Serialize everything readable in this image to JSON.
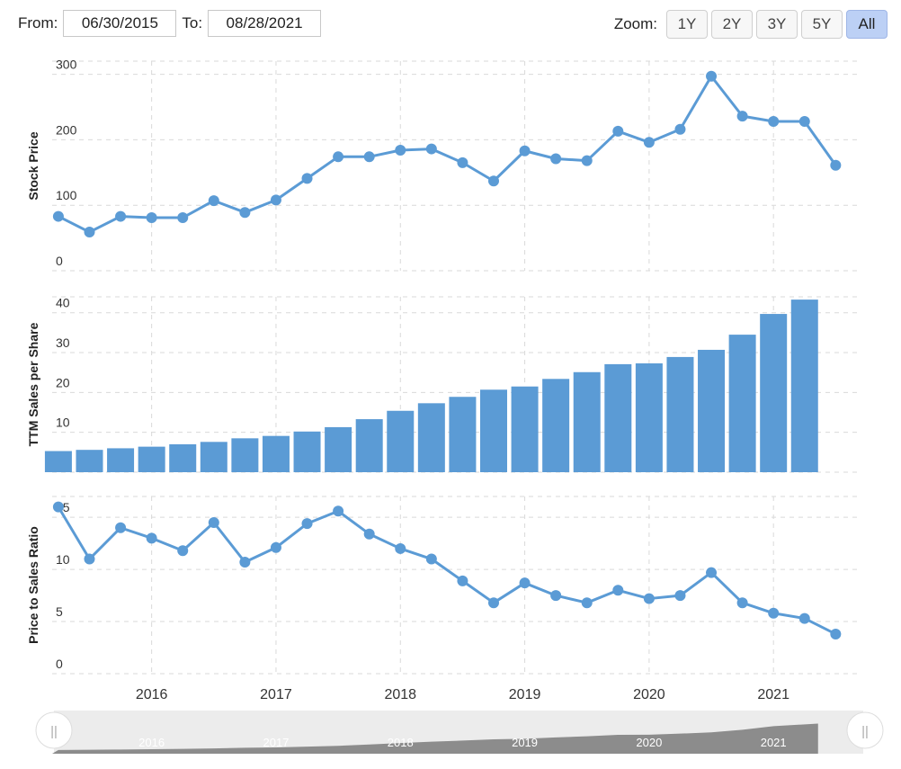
{
  "range": {
    "from_label": "From:",
    "from_value": "06/30/2015",
    "to_label": "To:",
    "to_value": "08/28/2021"
  },
  "zoom": {
    "label": "Zoom:",
    "buttons": [
      "1Y",
      "2Y",
      "3Y",
      "5Y",
      "All"
    ],
    "active": "All"
  },
  "colors": {
    "series": "#5b9bd5",
    "grid": "#d9d9d9",
    "navigator_fill": "#8c8c8c",
    "navigator_bg": "#ececec"
  },
  "navigator": {
    "handle_icon": "drag-handle-icon",
    "handle_glyph": "||",
    "year_labels": [
      "2016",
      "2017",
      "2018",
      "2019",
      "2020",
      "2021"
    ]
  },
  "chart_data": [
    {
      "type": "line",
      "ylabel": "Stock Price",
      "ylim": [
        0,
        320
      ],
      "yticks": [
        0,
        100,
        200,
        300
      ],
      "xlim": [
        2015.2,
        2021.7
      ],
      "xticks": [
        "2016",
        "2017",
        "2018",
        "2019",
        "2020",
        "2021"
      ],
      "x": [
        2015.25,
        2015.5,
        2015.75,
        2016.0,
        2016.25,
        2016.5,
        2016.75,
        2017.0,
        2017.25,
        2017.5,
        2017.75,
        2018.0,
        2018.25,
        2018.5,
        2018.75,
        2019.0,
        2019.25,
        2019.5,
        2019.75,
        2020.0,
        2020.25,
        2020.5,
        2020.75,
        2021.0,
        2021.25,
        2021.5
      ],
      "values": [
        83,
        59,
        83,
        81,
        81,
        107,
        89,
        108,
        141,
        174,
        174,
        184,
        186,
        165,
        137,
        183,
        171,
        168,
        213,
        196,
        216,
        297,
        236,
        228,
        228,
        161
      ]
    },
    {
      "type": "bar",
      "ylabel": "TTM Sales per Share",
      "ylim": [
        0,
        44
      ],
      "yticks": [
        0,
        10,
        20,
        30,
        40
      ],
      "x": [
        2015.25,
        2015.5,
        2015.75,
        2016.0,
        2016.25,
        2016.5,
        2016.75,
        2017.0,
        2017.25,
        2017.5,
        2017.75,
        2018.0,
        2018.25,
        2018.5,
        2018.75,
        2019.0,
        2019.25,
        2019.5,
        2019.75,
        2020.0,
        2020.25,
        2020.5,
        2020.75,
        2021.0,
        2021.25
      ],
      "values": [
        5.3,
        5.6,
        6.0,
        6.4,
        7.0,
        7.6,
        8.5,
        9.1,
        10.2,
        11.3,
        13.3,
        15.4,
        17.3,
        18.9,
        20.7,
        21.5,
        23.4,
        25.1,
        27.1,
        27.3,
        28.9,
        30.7,
        34.5,
        39.7,
        43.3
      ]
    },
    {
      "type": "line",
      "ylabel": "Price to Sales Ratio",
      "ylim": [
        0,
        17
      ],
      "yticks": [
        0,
        5,
        10,
        15
      ],
      "x": [
        2015.25,
        2015.5,
        2015.75,
        2016.0,
        2016.25,
        2016.5,
        2016.75,
        2017.0,
        2017.25,
        2017.5,
        2017.75,
        2018.0,
        2018.25,
        2018.5,
        2018.75,
        2019.0,
        2019.25,
        2019.5,
        2019.75,
        2020.0,
        2020.25,
        2020.5,
        2020.75,
        2021.0,
        2021.25,
        2021.5
      ],
      "values": [
        16.0,
        11.0,
        14.0,
        13.0,
        11.8,
        14.5,
        10.7,
        12.1,
        14.4,
        15.6,
        13.4,
        12.0,
        11.0,
        8.9,
        6.8,
        8.7,
        7.5,
        6.8,
        8.0,
        7.2,
        7.5,
        9.7,
        6.8,
        5.8,
        5.3,
        3.8
      ]
    }
  ]
}
